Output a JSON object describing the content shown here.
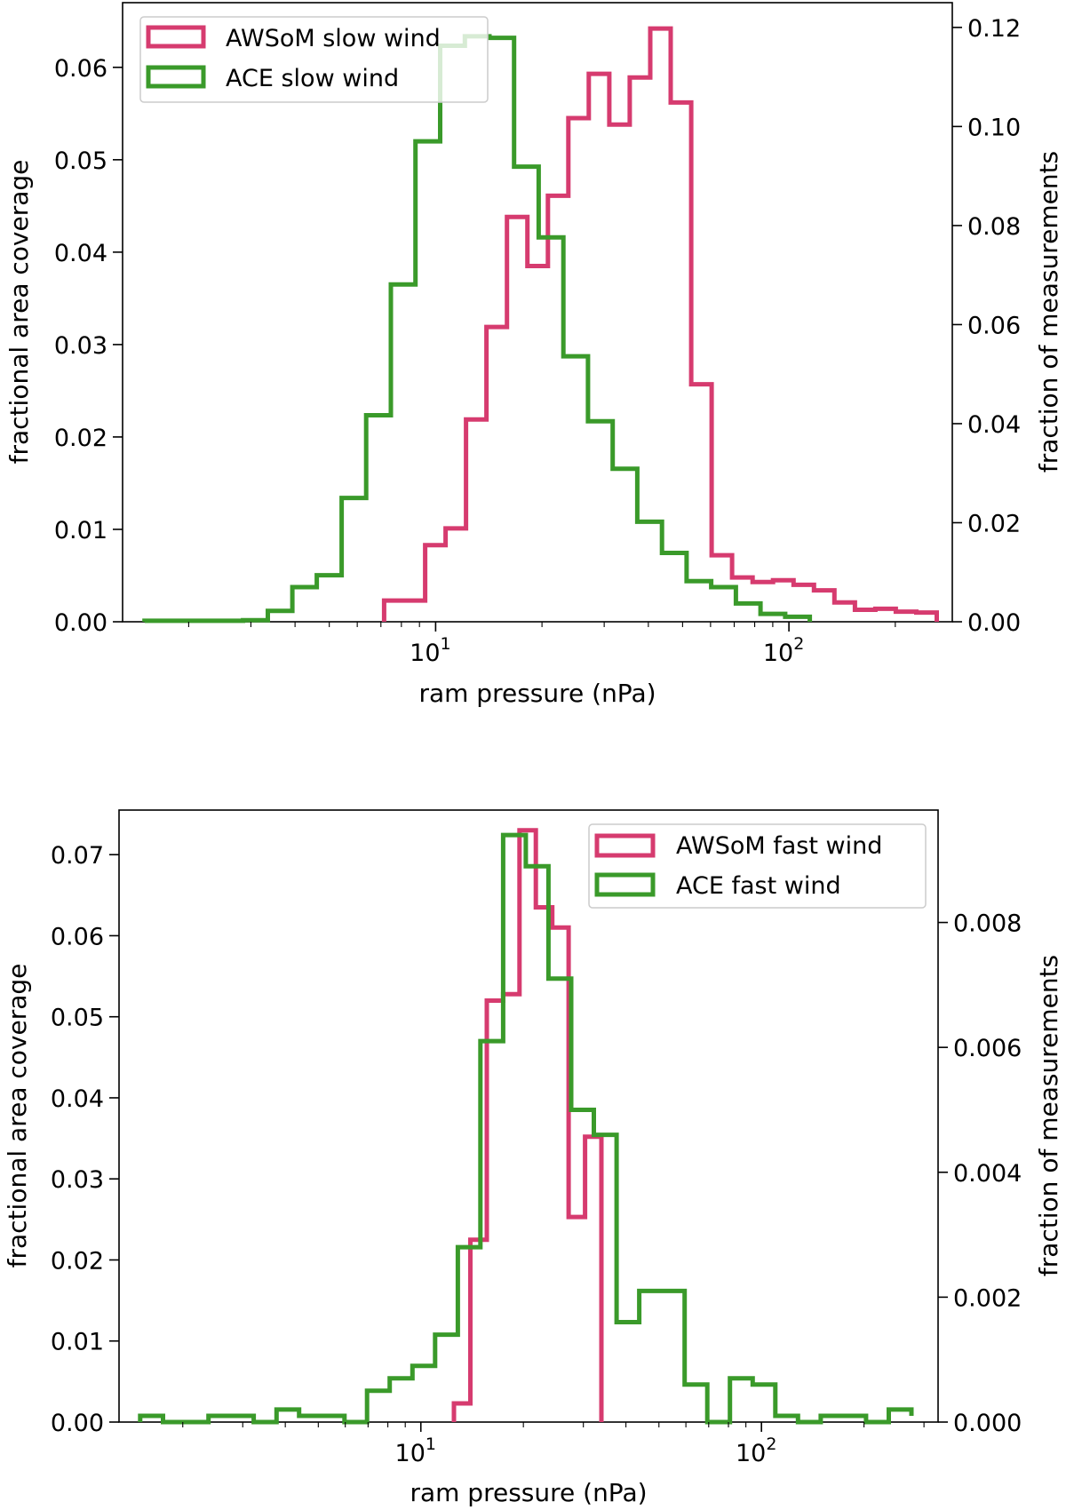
{
  "chart_data": [
    {
      "type": "histogram",
      "xscale": "log",
      "xlabel": "ram pressure (nPa)",
      "xlim": [
        1.3,
        290
      ],
      "xticks": [
        {
          "value": 10,
          "base": "10",
          "exp": "1"
        },
        {
          "value": 100,
          "base": "10",
          "exp": "2"
        }
      ],
      "ylabel_left": "fractional area coverage",
      "ylim_left": [
        0,
        0.067
      ],
      "yticks_left": [
        "0.00",
        "0.01",
        "0.02",
        "0.03",
        "0.04",
        "0.05",
        "0.06"
      ],
      "ylabel_right": "fraction of measurements",
      "ylim_right": [
        0,
        0.125
      ],
      "yticks_right": [
        "0.00",
        "0.02",
        "0.04",
        "0.06",
        "0.08",
        "0.10",
        "0.12"
      ],
      "legend_position": "upper-left",
      "series": [
        {
          "name": "AWSoM slow wind",
          "color": "#d63b6f",
          "axis": "left",
          "edges": [
            7.15,
            8.17,
            9.34,
            10.67,
            12.19,
            13.93,
            15.92,
            18.19,
            20.79,
            23.75,
            27.14,
            31.02,
            35.44,
            40.5,
            46.28,
            52.88,
            60.43,
            69.05,
            78.9,
            90.16,
            103.03,
            117.73,
            134.52,
            153.72,
            175.65,
            200.72,
            229.36,
            262.1
          ],
          "values": [
            0.0023,
            0.0023,
            0.0083,
            0.0101,
            0.0219,
            0.0319,
            0.0438,
            0.0385,
            0.0461,
            0.0545,
            0.0593,
            0.0538,
            0.0589,
            0.0642,
            0.0562,
            0.0257,
            0.0072,
            0.0048,
            0.0043,
            0.0045,
            0.004,
            0.0034,
            0.0021,
            0.0013,
            0.0014,
            0.0011,
            0.001
          ]
        },
        {
          "name": "ACE slow wind",
          "color": "#3a9a2a",
          "axis": "right",
          "edges": [
            1.5,
            1.76,
            2.07,
            2.43,
            2.85,
            3.35,
            3.93,
            4.61,
            5.42,
            6.36,
            7.47,
            8.77,
            10.3,
            12.1,
            14.2,
            16.67,
            19.58,
            22.99,
            27.0,
            31.7,
            37.22,
            43.71,
            51.33,
            60.27,
            70.77,
            83.1,
            97.58,
            114.6
          ],
          "values": [
            0.0002,
            0.0002,
            0.0002,
            0.0002,
            0.0003,
            0.0022,
            0.007,
            0.0094,
            0.025,
            0.0417,
            0.0681,
            0.097,
            0.1163,
            0.1182,
            0.1179,
            0.0919,
            0.0776,
            0.0536,
            0.0405,
            0.0309,
            0.0202,
            0.0139,
            0.0082,
            0.007,
            0.0037,
            0.0016,
            0.001
          ]
        }
      ]
    },
    {
      "type": "histogram",
      "xscale": "log",
      "xlabel": "ram pressure (nPa)",
      "xlim": [
        1.3,
        330
      ],
      "xticks": [
        {
          "value": 10,
          "base": "10",
          "exp": "1"
        },
        {
          "value": 100,
          "base": "10",
          "exp": "2"
        }
      ],
      "ylabel_left": "fractional area coverage",
      "ylim_left": [
        0,
        0.0755
      ],
      "yticks_left": [
        "0.00",
        "0.01",
        "0.02",
        "0.03",
        "0.04",
        "0.05",
        "0.06",
        "0.07"
      ],
      "ylabel_right": "fraction of measurements",
      "ylim_right": [
        0,
        0.0098
      ],
      "yticks_right": [
        "0.000",
        "0.002",
        "0.004",
        "0.006",
        "0.008"
      ],
      "legend_position": "upper-right",
      "series": [
        {
          "name": "AWSoM fast wind",
          "color": "#d63b6f",
          "axis": "left",
          "edges": [
            12.51,
            13.98,
            15.62,
            17.44,
            19.48,
            21.76,
            24.31,
            27.16,
            30.34,
            33.89
          ],
          "values": [
            0.0023,
            0.0225,
            0.052,
            0.0528,
            0.073,
            0.0635,
            0.061,
            0.0253,
            0.0352
          ]
        },
        {
          "name": "ACE fast wind",
          "color": "#3a9a2a",
          "axis": "right",
          "edges": [
            1.5,
            1.75,
            2.04,
            2.38,
            2.77,
            3.23,
            3.77,
            4.39,
            5.12,
            5.97,
            6.95,
            8.1,
            9.45,
            11.01,
            12.84,
            14.96,
            17.44,
            20.33,
            23.7,
            27.63,
            32.21,
            37.55,
            43.77,
            51.02,
            59.48,
            69.34,
            80.83,
            94.22,
            109.83,
            128.03,
            149.25,
            173.98,
            202.81,
            236.43,
            275.6
          ],
          "values": [
            0.0001,
            0.0,
            0.0,
            0.0001,
            0.0001,
            0.0,
            0.0002,
            0.0001,
            0.0001,
            0.0,
            0.0005,
            0.0007,
            0.0009,
            0.0014,
            0.0028,
            0.0061,
            0.0094,
            0.0089,
            0.0071,
            0.005,
            0.0046,
            0.0016,
            0.0021,
            0.0021,
            0.0006,
            0.0,
            0.0007,
            0.0006,
            0.0001,
            0.0,
            0.0001,
            0.0001,
            0.0,
            0.0002,
            0.0001
          ]
        }
      ]
    }
  ]
}
